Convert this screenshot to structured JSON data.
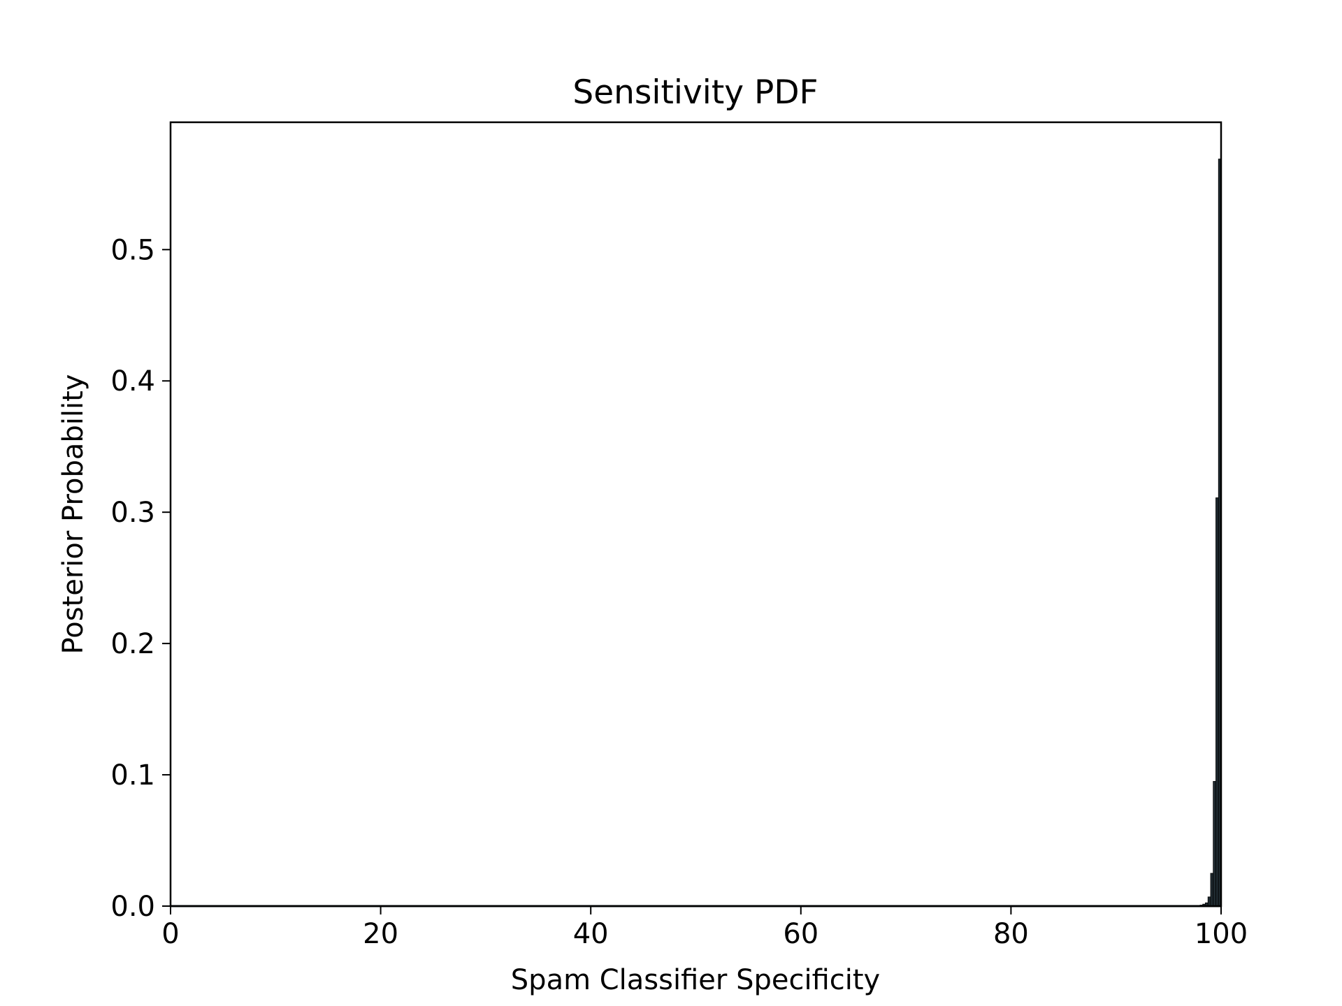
{
  "chart_data": {
    "type": "bar",
    "title": "Sensitivity PDF",
    "xlabel": "Spam Classifier Specificity",
    "ylabel": "Posterior Probability",
    "xlim": [
      0,
      100
    ],
    "ylim": [
      0,
      0.597
    ],
    "xticks": [
      "0",
      "20",
      "40",
      "60",
      "80",
      "100"
    ],
    "yticks": [
      "0.0",
      "0.1",
      "0.2",
      "0.3",
      "0.4",
      "0.5"
    ],
    "grid": false,
    "bar_color": "#1f2a30",
    "x": [
      97.5,
      97.75,
      98.0,
      98.25,
      98.5,
      98.75,
      99.0,
      99.25,
      99.5,
      99.75
    ],
    "values": [
      0.0002,
      0.0004,
      0.0008,
      0.0015,
      0.0025,
      0.007,
      0.025,
      0.095,
      0.311,
      0.569
    ]
  }
}
